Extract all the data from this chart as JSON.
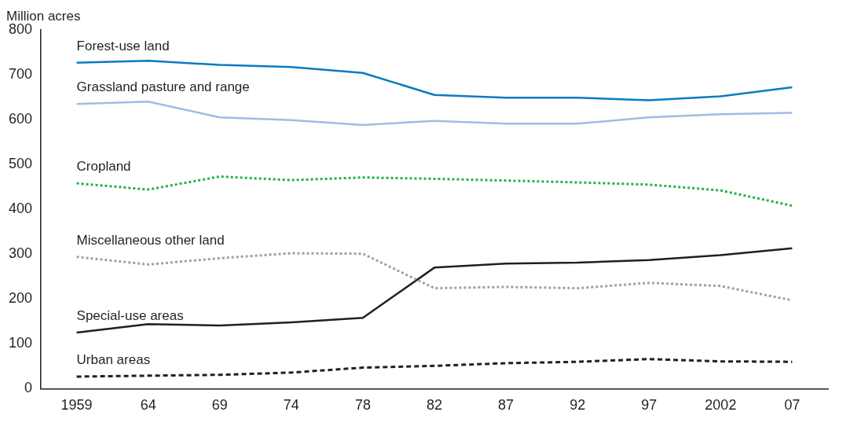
{
  "chart_data": {
    "type": "line",
    "ylabel": "Million acres",
    "categories": [
      "1959",
      "64",
      "69",
      "74",
      "78",
      "82",
      "87",
      "92",
      "97",
      "2002",
      "07"
    ],
    "ylim": [
      0,
      800
    ],
    "yticks": [
      0,
      100,
      200,
      300,
      400,
      500,
      600,
      700,
      800
    ],
    "grid": false,
    "legend": false,
    "marker": "none",
    "series": [
      {
        "name": "Forest-use land",
        "color": "#0a7bc1",
        "line_style": "solid",
        "values": [
          727,
          731,
          722,
          717,
          704,
          655,
          649,
          649,
          643,
          652,
          672
        ]
      },
      {
        "name": "Grassland pasture and range",
        "color": "#9fbde6",
        "line_style": "solid",
        "values": [
          635,
          640,
          605,
          599,
          588,
          597,
          591,
          591,
          605,
          612,
          615
        ]
      },
      {
        "name": "Cropland",
        "color": "#21b24b",
        "line_style": "dotted",
        "values": [
          458,
          444,
          473,
          465,
          471,
          468,
          464,
          460,
          455,
          442,
          408
        ]
      },
      {
        "name": "Miscellaneous other land",
        "color": "#a0a0a0",
        "line_style": "dotted",
        "values": [
          294,
          277,
          291,
          302,
          301,
          224,
          227,
          224,
          236,
          229,
          197
        ]
      },
      {
        "name": "Special-use areas",
        "color": "#231f20",
        "line_style": "solid",
        "values": [
          125,
          144,
          141,
          148,
          158,
          270,
          279,
          281,
          287,
          298,
          313
        ]
      },
      {
        "name": "Urban areas",
        "color": "#231f20",
        "line_style": "dashed",
        "values": [
          27,
          29,
          31,
          36,
          47,
          51,
          57,
          60,
          66,
          61,
          60
        ]
      }
    ]
  }
}
